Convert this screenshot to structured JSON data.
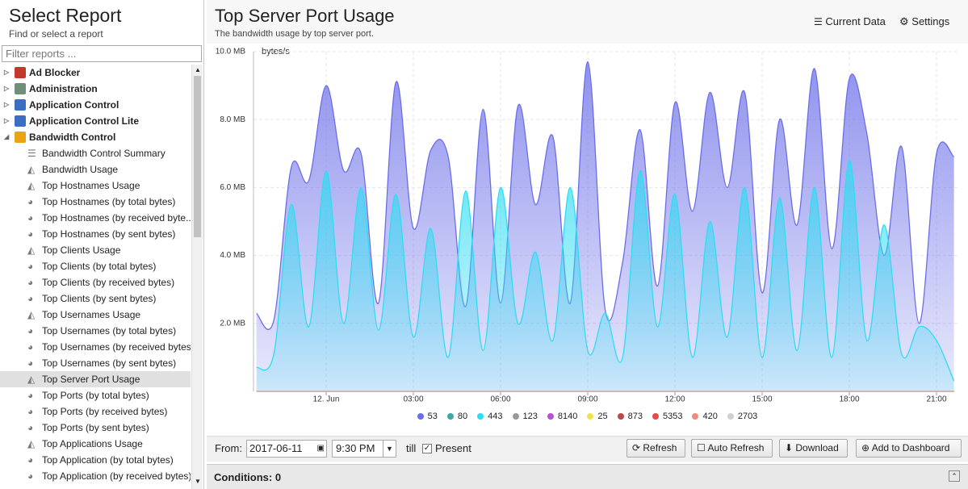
{
  "sidebar": {
    "title": "Select Report",
    "subtitle": "Find or select a report",
    "filter_placeholder": "Filter reports ...",
    "groups": [
      {
        "label": "Ad Blocker",
        "icon_color": "#c0392b"
      },
      {
        "label": "Administration",
        "icon_color": "#6f8f7a"
      },
      {
        "label": "Application Control",
        "icon_color": "#3b6fc4"
      },
      {
        "label": "Application Control Lite",
        "icon_color": "#3b6fc4"
      },
      {
        "label": "Bandwidth Control",
        "icon_color": "#e8a317",
        "expanded": true,
        "items": [
          {
            "label": "Bandwidth Control Summary",
            "icon": "list"
          },
          {
            "label": "Bandwidth Usage",
            "icon": "area"
          },
          {
            "label": "Top Hostnames Usage",
            "icon": "area"
          },
          {
            "label": "Top Hostnames (by total bytes)",
            "icon": "pie"
          },
          {
            "label": "Top Hostnames (by received byte...",
            "icon": "pie"
          },
          {
            "label": "Top Hostnames (by sent bytes)",
            "icon": "pie"
          },
          {
            "label": "Top Clients Usage",
            "icon": "area"
          },
          {
            "label": "Top Clients (by total bytes)",
            "icon": "pie"
          },
          {
            "label": "Top Clients (by received bytes)",
            "icon": "pie"
          },
          {
            "label": "Top Clients (by sent bytes)",
            "icon": "pie"
          },
          {
            "label": "Top Usernames Usage",
            "icon": "area"
          },
          {
            "label": "Top Usernames (by total bytes)",
            "icon": "pie"
          },
          {
            "label": "Top Usernames (by received bytes)",
            "icon": "pie"
          },
          {
            "label": "Top Usernames (by sent bytes)",
            "icon": "pie"
          },
          {
            "label": "Top Server Port Usage",
            "icon": "area",
            "selected": true
          },
          {
            "label": "Top Ports (by total bytes)",
            "icon": "pie"
          },
          {
            "label": "Top Ports (by received bytes)",
            "icon": "pie"
          },
          {
            "label": "Top Ports (by sent bytes)",
            "icon": "pie"
          },
          {
            "label": "Top Applications Usage",
            "icon": "area"
          },
          {
            "label": "Top Application (by total bytes)",
            "icon": "pie"
          },
          {
            "label": "Top Application (by received bytes)",
            "icon": "pie"
          }
        ]
      }
    ]
  },
  "report": {
    "title": "Top Server Port Usage",
    "subtitle": "The bandwidth usage by top server port.",
    "current_data": "Current Data",
    "settings": "Settings"
  },
  "chart_data": {
    "type": "area",
    "y_label": "bytes/s",
    "x": [
      -2.4,
      -1.8,
      -1.2,
      -0.6,
      0,
      0.6,
      1.2,
      1.8,
      2.4,
      3,
      3.6,
      4.2,
      4.8,
      5.4,
      6,
      6.6,
      7.2,
      7.8,
      8.4,
      9,
      9.6,
      10.2,
      10.8,
      11.4,
      12,
      12.6,
      13.2,
      13.8,
      14.4,
      15,
      15.6,
      16.2,
      16.8,
      17.4,
      18,
      18.6,
      19.2,
      19.8,
      20.4,
      21,
      21.6
    ],
    "xlim": [
      -2.5,
      21.75
    ],
    "xticks": [
      {
        "value": 0,
        "label": "12. Jun"
      },
      {
        "value": 3,
        "label": "03:00"
      },
      {
        "value": 6,
        "label": "06:00"
      },
      {
        "value": 9,
        "label": "09:00"
      },
      {
        "value": 12,
        "label": "12:00"
      },
      {
        "value": 15,
        "label": "15:00"
      },
      {
        "value": 18,
        "label": "18:00"
      },
      {
        "value": 21,
        "label": "21:00"
      }
    ],
    "ylim": [
      0,
      10
    ],
    "yticks": [
      {
        "value": 2,
        "label": "2.0 MB"
      },
      {
        "value": 4,
        "label": "4.0 MB"
      },
      {
        "value": 6,
        "label": "6.0 MB"
      },
      {
        "value": 8,
        "label": "8.0 MB"
      },
      {
        "value": 10,
        "label": "10.0 MB"
      }
    ],
    "grid": true,
    "series": [
      {
        "name": "53",
        "color": "#6b6ee8",
        "values": [
          2.3,
          2.1,
          6.6,
          6.2,
          9.0,
          6.5,
          7.0,
          2.6,
          9.1,
          4.8,
          7.1,
          6.9,
          2.5,
          8.3,
          2.6,
          8.4,
          5.5,
          7.5,
          2.6,
          9.7,
          2.4,
          3.8,
          7.7,
          3.1,
          8.5,
          5.3,
          8.8,
          6.0,
          8.8,
          2.9,
          8.0,
          4.9,
          9.5,
          4.2,
          9.2,
          7.6,
          4.0,
          7.2,
          2.0,
          7.0,
          6.9
        ]
      },
      {
        "name": "80",
        "color": "#3fa79f",
        "values": [
          0,
          0,
          0,
          0,
          0,
          0,
          0,
          0,
          0,
          0,
          0,
          0,
          0,
          0,
          0,
          0,
          0,
          0,
          0,
          0,
          0,
          0,
          0,
          0,
          0,
          0,
          0,
          0,
          0,
          0,
          0,
          0,
          0,
          0,
          0,
          0,
          0,
          0,
          0,
          0,
          0
        ]
      },
      {
        "name": "443",
        "color": "#2fdcf2",
        "values": [
          0.7,
          1.1,
          5.5,
          1.9,
          6.5,
          2.0,
          6.0,
          1.8,
          5.8,
          1.6,
          4.8,
          1.0,
          5.9,
          1.2,
          6.0,
          2.0,
          4.1,
          1.5,
          6.0,
          1.2,
          2.3,
          1.0,
          6.5,
          1.9,
          5.8,
          1.0,
          5.0,
          1.6,
          6.0,
          1.0,
          5.7,
          1.2,
          6.0,
          1.0,
          6.8,
          1.5,
          4.9,
          1.1,
          1.9,
          1.5,
          0.3
        ]
      },
      {
        "name": "123",
        "color": "#999999",
        "values": [
          0,
          0,
          0,
          0,
          0,
          0,
          0,
          0,
          0,
          0,
          0,
          0,
          0,
          0,
          0,
          0,
          0,
          0,
          0,
          0,
          0,
          0,
          0,
          0,
          0,
          0,
          0,
          0,
          0,
          0,
          0,
          0,
          0,
          0,
          0,
          0,
          0,
          0,
          0,
          0,
          0
        ]
      },
      {
        "name": "8140",
        "color": "#b94fd1",
        "values": [
          0,
          0,
          0,
          0,
          0,
          0,
          0,
          0,
          0,
          0,
          0,
          0,
          0,
          0,
          0,
          0,
          0,
          0,
          0,
          0,
          0,
          0,
          0,
          0,
          0,
          0,
          0,
          0,
          0,
          0,
          0,
          0,
          0,
          0,
          0,
          0,
          0,
          0,
          0,
          0,
          0
        ]
      },
      {
        "name": "25",
        "color": "#f2e24a",
        "values": [
          0,
          0,
          0,
          0,
          0,
          0,
          0,
          0,
          0,
          0,
          0,
          0,
          0,
          0,
          0,
          0,
          0,
          0,
          0,
          0,
          0,
          0,
          0,
          0,
          0,
          0,
          0,
          0,
          0,
          0,
          0,
          0,
          0,
          0,
          0,
          0,
          0,
          0,
          0,
          0,
          0
        ]
      },
      {
        "name": "873",
        "color": "#b84a4a",
        "values": [
          0,
          0,
          0,
          0,
          0,
          0,
          0,
          0,
          0,
          0,
          0,
          0,
          0,
          0,
          0,
          0,
          0,
          0,
          0,
          0,
          0,
          0,
          0,
          0,
          0,
          0,
          0,
          0,
          0,
          0,
          0,
          0,
          0,
          0,
          0,
          0,
          0,
          0,
          0,
          0,
          0
        ]
      },
      {
        "name": "5353",
        "color": "#e84a4a",
        "values": [
          0,
          0,
          0,
          0,
          0,
          0,
          0,
          0,
          0,
          0,
          0,
          0,
          0,
          0,
          0,
          0,
          0,
          0,
          0,
          0,
          0,
          0,
          0,
          0,
          0,
          0,
          0,
          0,
          0,
          0,
          0,
          0,
          0,
          0,
          0,
          0,
          0,
          0,
          0,
          0,
          0
        ]
      },
      {
        "name": "420",
        "color": "#f08a7a",
        "values": [
          0,
          0,
          0,
          0,
          0,
          0,
          0,
          0,
          0,
          0,
          0,
          0,
          0,
          0,
          0,
          0,
          0,
          0,
          0,
          0,
          0,
          0,
          0,
          0,
          0,
          0,
          0,
          0,
          0,
          0,
          0,
          0,
          0,
          0,
          0,
          0,
          0,
          0,
          0,
          0,
          0
        ]
      },
      {
        "name": "2703",
        "color": "#d0d0d0",
        "values": [
          0,
          0,
          0,
          0,
          0,
          0,
          0,
          0,
          0,
          0,
          0,
          0,
          0,
          0,
          0,
          0,
          0,
          0,
          0,
          0,
          0,
          0,
          0,
          0,
          0,
          0,
          0,
          0,
          0,
          0,
          0,
          0,
          0,
          0,
          0,
          0,
          0,
          0,
          0,
          0,
          0
        ]
      }
    ]
  },
  "controls": {
    "from": "From:",
    "date": "2017-06-11",
    "time": "9:30 PM",
    "till": "till",
    "present": "Present",
    "refresh": "Refresh",
    "auto_refresh": "Auto Refresh",
    "download": "Download",
    "add_to_dashboard": "Add to Dashboard"
  },
  "conditions": "Conditions: 0"
}
